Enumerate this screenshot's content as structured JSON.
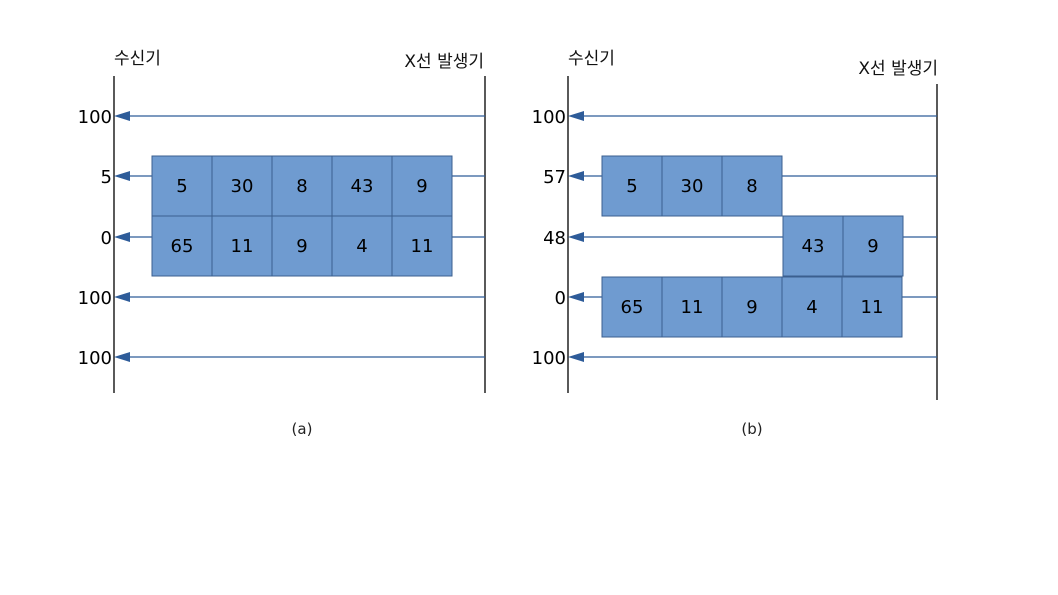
{
  "colors": {
    "cell_fill": "#6f9bd0",
    "cell_stroke": "#3b5f8f",
    "line": "#2e5c99",
    "frame": "#000000"
  },
  "panels": [
    {
      "id": "a",
      "receiver_label": "수신기",
      "source_label": "X선 발생기",
      "caption": "(a)",
      "ray_labels": [
        "100",
        "5",
        "0",
        "100",
        "100"
      ],
      "rows": [
        [
          "5",
          "30",
          "8",
          "43",
          "9"
        ],
        [
          "65",
          "11",
          "9",
          "4",
          "11"
        ]
      ]
    },
    {
      "id": "b",
      "receiver_label": "수신기",
      "source_label": "X선 발생기",
      "caption": "(b)",
      "ray_labels": [
        "100",
        "57",
        "48",
        "0",
        "100"
      ],
      "rows": [
        [
          "5",
          "30",
          "8"
        ],
        [
          "43",
          "9"
        ],
        [
          "65",
          "11",
          "9",
          "4",
          "11"
        ]
      ]
    }
  ]
}
